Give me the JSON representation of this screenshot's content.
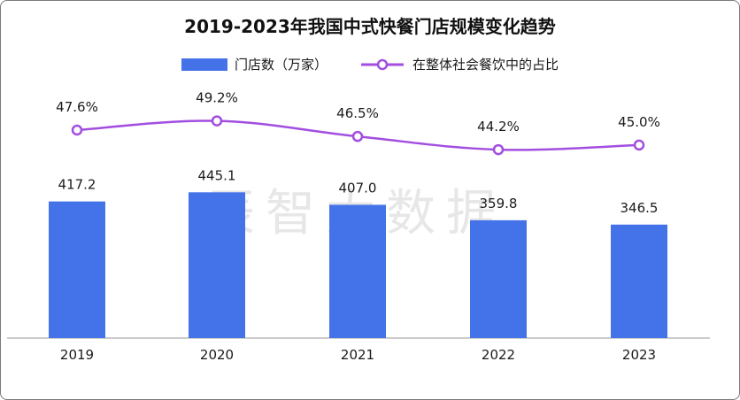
{
  "chart_data": {
    "type": "bar",
    "title": "2019-2023年我国中式快餐门店规模变化趋势",
    "categories": [
      "2019",
      "2020",
      "2021",
      "2022",
      "2023"
    ],
    "series": [
      {
        "name": "门店数（万家）",
        "type": "bar",
        "values": [
          417.2,
          445.1,
          407.0,
          359.8,
          346.5
        ],
        "labels": [
          "417.2",
          "445.1",
          "407.0",
          "359.8",
          "346.5"
        ],
        "color": "#4472e8"
      },
      {
        "name": "在整体社会餐饮中的占比",
        "type": "line",
        "values": [
          47.6,
          49.2,
          46.5,
          44.2,
          45.0
        ],
        "labels": [
          "47.6%",
          "49.2%",
          "46.5%",
          "44.2%",
          "45.0%"
        ],
        "color": "#a24ee0"
      }
    ],
    "legend_position": "top",
    "grid": false
  },
  "watermark": "辰智大数据"
}
